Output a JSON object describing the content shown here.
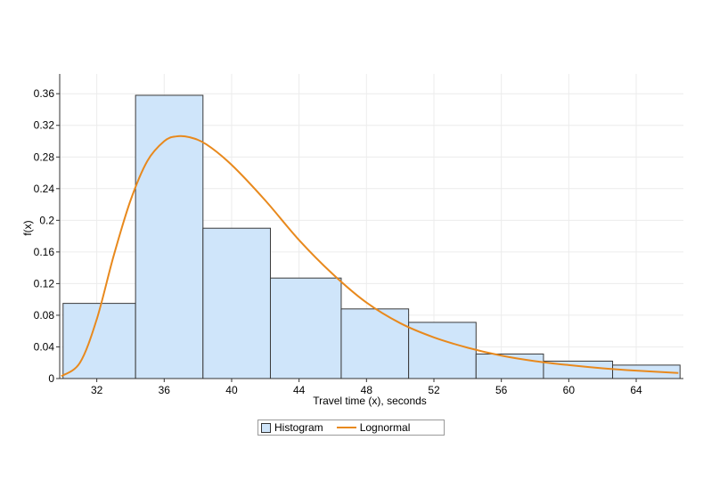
{
  "chart_data": {
    "type": "bar",
    "title": "",
    "xlabel": "Travel time (x), seconds",
    "ylabel": "f(x)",
    "xlim": [
      29.8,
      66.8
    ],
    "ylim": [
      0,
      0.385
    ],
    "xticks": [
      32,
      36,
      40,
      44,
      48,
      52,
      56,
      60,
      64
    ],
    "yticks": [
      0,
      0.04,
      0.08,
      0.12,
      0.16,
      0.2,
      0.24,
      0.28,
      0.32,
      0.36
    ],
    "ytick_labels": [
      "0",
      "0.04",
      "0.08",
      "0.12",
      "0.16",
      "0.2",
      "0.24",
      "0.28",
      "0.32",
      "0.36"
    ],
    "grid": true,
    "legend_position": "bottom-center",
    "series": [
      {
        "name": "Histogram",
        "kind": "histogram",
        "bins": [
          {
            "x0": 30.0,
            "x1": 34.3,
            "value": 0.095
          },
          {
            "x0": 34.3,
            "x1": 38.3,
            "value": 0.358
          },
          {
            "x0": 38.3,
            "x1": 42.3,
            "value": 0.19
          },
          {
            "x0": 42.3,
            "x1": 46.5,
            "value": 0.127
          },
          {
            "x0": 46.5,
            "x1": 50.5,
            "value": 0.088
          },
          {
            "x0": 50.5,
            "x1": 54.5,
            "value": 0.071
          },
          {
            "x0": 54.5,
            "x1": 58.5,
            "value": 0.031
          },
          {
            "x0": 58.5,
            "x1": 62.6,
            "value": 0.022
          },
          {
            "x0": 62.6,
            "x1": 66.6,
            "value": 0.017
          }
        ]
      },
      {
        "name": "Lognormal",
        "kind": "line",
        "x": [
          29.9,
          31,
          32,
          33,
          34,
          35,
          36,
          36.7,
          37.5,
          38.5,
          40,
          42,
          44,
          46,
          48,
          50,
          52,
          54,
          56,
          58,
          60,
          62,
          64,
          66.5
        ],
        "y": [
          0.003,
          0.02,
          0.075,
          0.155,
          0.225,
          0.275,
          0.3,
          0.306,
          0.305,
          0.296,
          0.27,
          0.225,
          0.175,
          0.132,
          0.096,
          0.07,
          0.052,
          0.039,
          0.029,
          0.022,
          0.017,
          0.013,
          0.01,
          0.007
        ]
      }
    ]
  },
  "colors": {
    "bar_fill": "#cfe5fa",
    "bar_stroke": "#3a3a3a",
    "line": "#e8891d",
    "grid": "#ececec"
  },
  "legend": {
    "histogram_label": "Histogram",
    "lognormal_label": "Lognormal"
  }
}
